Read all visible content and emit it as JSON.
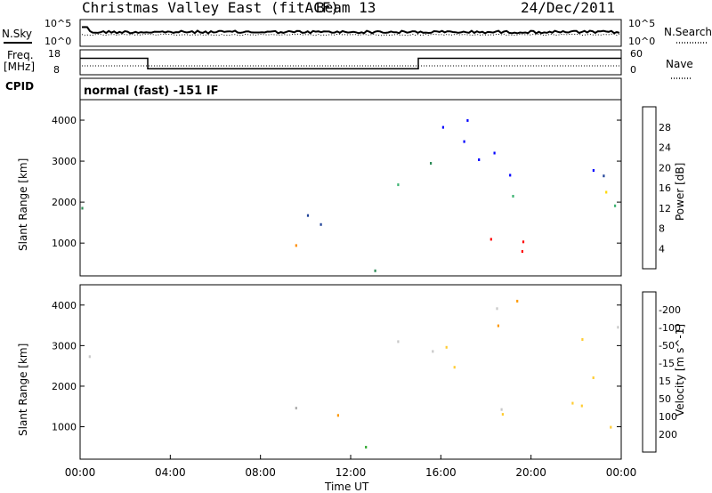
{
  "header": {
    "title": "Christmas Valley East (fitACF)",
    "beam": "Beam 13",
    "date": "24/Dec/2011"
  },
  "strip_nsky": {
    "left_label": "N.Sky",
    "right_label": "N.Search",
    "ticks_left": [
      "10^5",
      "10^0"
    ],
    "ticks_right": [
      "10^5",
      "10^0"
    ]
  },
  "strip_freq": {
    "left_label": "Freq.",
    "left_unit": "[MHz]",
    "right_label": "Nave",
    "ticks_left": [
      "18",
      "8"
    ],
    "ticks_right": [
      "60",
      "0"
    ],
    "x_hours": [
      0,
      3.0,
      3.0,
      15.0,
      15.0,
      24
    ],
    "freq_mhz": [
      15.5,
      15.5,
      10.2,
      10.2,
      15.5,
      15.5
    ]
  },
  "cpid": {
    "label": "CPID",
    "text": "normal (fast) -151 IF"
  },
  "colors": {
    "power": [
      "#0000ff",
      "#224499",
      "#2e8b57",
      "#3cb371",
      "#ffd700",
      "#ff8c00",
      "#ff3300",
      "#ff0000"
    ],
    "velocity": [
      "#ff0000",
      "#ff5500",
      "#ff9900",
      "#ffcc33",
      "#c8c8c8",
      "#aaaaaa",
      "#66cc33",
      "#33aa33",
      "#2255aa",
      "#1a2a8c"
    ]
  },
  "chart_data": [
    {
      "type": "heatmap",
      "name": "power",
      "ylabel": "Slant Range [km]",
      "yticks": [
        "1000",
        "2000",
        "3000",
        "4000"
      ],
      "ylim": [
        200,
        4500
      ],
      "xlim": [
        0,
        24
      ],
      "colorbar_label": "Power [dB]",
      "colorbar_ticks": [
        "4",
        "8",
        "12",
        "16",
        "20",
        "24",
        "28"
      ],
      "blobs": [
        {
          "t0": 0.0,
          "t1": 0.6,
          "r0": 1400,
          "r1": 2700,
          "level": 4
        },
        {
          "t0": 0.0,
          "t1": 0.9,
          "r0": 1500,
          "r1": 3200,
          "level": 1
        },
        {
          "t0": 0.8,
          "t1": 2.3,
          "r0": 1300,
          "r1": 1900,
          "level": 1
        },
        {
          "t0": 6.0,
          "t1": 15.0,
          "r0": 250,
          "r1": 550,
          "level": 1
        },
        {
          "t0": 9.0,
          "t1": 10.8,
          "r0": 900,
          "r1": 1700,
          "level": 5
        },
        {
          "t0": 8.5,
          "t1": 11.8,
          "r0": 800,
          "r1": 2200,
          "level": 1
        },
        {
          "t0": 14.0,
          "t1": 16.0,
          "r0": 1500,
          "r1": 3200,
          "level": 2
        },
        {
          "t0": 15.5,
          "t1": 24.0,
          "r0": 700,
          "r1": 1600,
          "level": 7
        },
        {
          "t0": 15.5,
          "t1": 24.0,
          "r0": 1600,
          "r1": 2300,
          "level": 3
        },
        {
          "t0": 16.0,
          "t1": 24.0,
          "r0": 2200,
          "r1": 4400,
          "level": 0
        }
      ]
    },
    {
      "type": "heatmap",
      "name": "velocity",
      "ylabel": "Slant Range [km]",
      "yticks": [
        "1000",
        "2000",
        "3000",
        "4000"
      ],
      "ylim": [
        200,
        4500
      ],
      "xlim": [
        0,
        24
      ],
      "xlabel": "Time UT",
      "xticks": [
        "00:00",
        "04:00",
        "08:00",
        "12:00",
        "16:00",
        "20:00",
        "00:00"
      ],
      "colorbar_label": "Velocity [m s^-1]",
      "colorbar_ticks": [
        "200",
        "100",
        "50",
        "15",
        "-15",
        "-50",
        "-100",
        "-200"
      ],
      "blobs": [
        {
          "t0": 0.0,
          "t1": 0.8,
          "r0": 1500,
          "r1": 3200,
          "level": 4
        },
        {
          "t0": 0.8,
          "t1": 2.2,
          "r0": 1300,
          "r1": 1900,
          "level": 6
        },
        {
          "t0": 6.0,
          "t1": 15.5,
          "r0": 250,
          "r1": 550,
          "level": 6
        },
        {
          "t0": 9.0,
          "t1": 10.7,
          "r0": 900,
          "r1": 1700,
          "level": 6
        },
        {
          "t0": 10.5,
          "t1": 12.0,
          "r0": 1000,
          "r1": 2200,
          "level": 2
        },
        {
          "t0": 14.0,
          "t1": 16.0,
          "r0": 1500,
          "r1": 3200,
          "level": 4
        },
        {
          "t0": 15.5,
          "t1": 24.0,
          "r0": 800,
          "r1": 2200,
          "level": 4
        },
        {
          "t0": 16.0,
          "t1": 24.0,
          "r0": 2200,
          "r1": 4400,
          "level": 3
        }
      ]
    }
  ]
}
